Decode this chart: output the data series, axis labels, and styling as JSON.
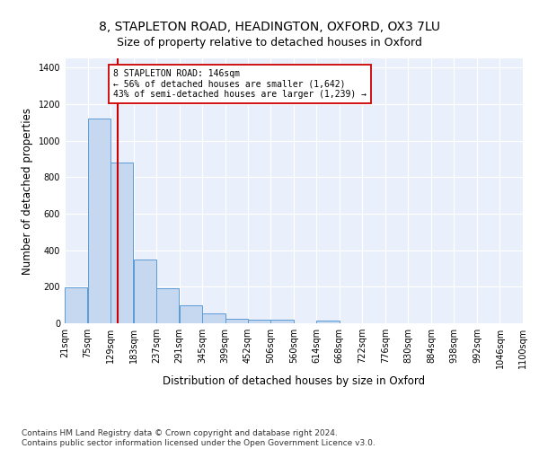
{
  "title1": "8, STAPLETON ROAD, HEADINGTON, OXFORD, OX3 7LU",
  "title2": "Size of property relative to detached houses in Oxford",
  "xlabel": "Distribution of detached houses by size in Oxford",
  "ylabel": "Number of detached properties",
  "bar_color": "#c5d8f0",
  "bar_edge_color": "#5b9bd5",
  "background_color": "#eaf0fb",
  "grid_color": "#ffffff",
  "annotation_line_color": "#cc0000",
  "annotation_box_color": "#cc0000",
  "annotation_text": "8 STAPLETON ROAD: 146sqm\n← 56% of detached houses are smaller (1,642)\n43% of semi-detached houses are larger (1,239) →",
  "property_size": 146,
  "bin_edges": [
    21,
    75,
    129,
    183,
    237,
    291,
    345,
    399,
    452,
    506,
    560,
    614,
    668,
    722,
    776,
    830,
    884,
    938,
    992,
    1046,
    1100
  ],
  "bar_heights": [
    197,
    1120,
    880,
    350,
    193,
    100,
    52,
    25,
    20,
    18,
    0,
    14,
    0,
    0,
    0,
    0,
    0,
    0,
    0,
    0
  ],
  "ylim": [
    0,
    1450
  ],
  "yticks": [
    0,
    200,
    400,
    600,
    800,
    1000,
    1200,
    1400
  ],
  "footnote": "Contains HM Land Registry data © Crown copyright and database right 2024.\nContains public sector information licensed under the Open Government Licence v3.0.",
  "title_fontsize": 10,
  "subtitle_fontsize": 9,
  "axis_label_fontsize": 8.5,
  "tick_fontsize": 7,
  "footnote_fontsize": 6.5
}
